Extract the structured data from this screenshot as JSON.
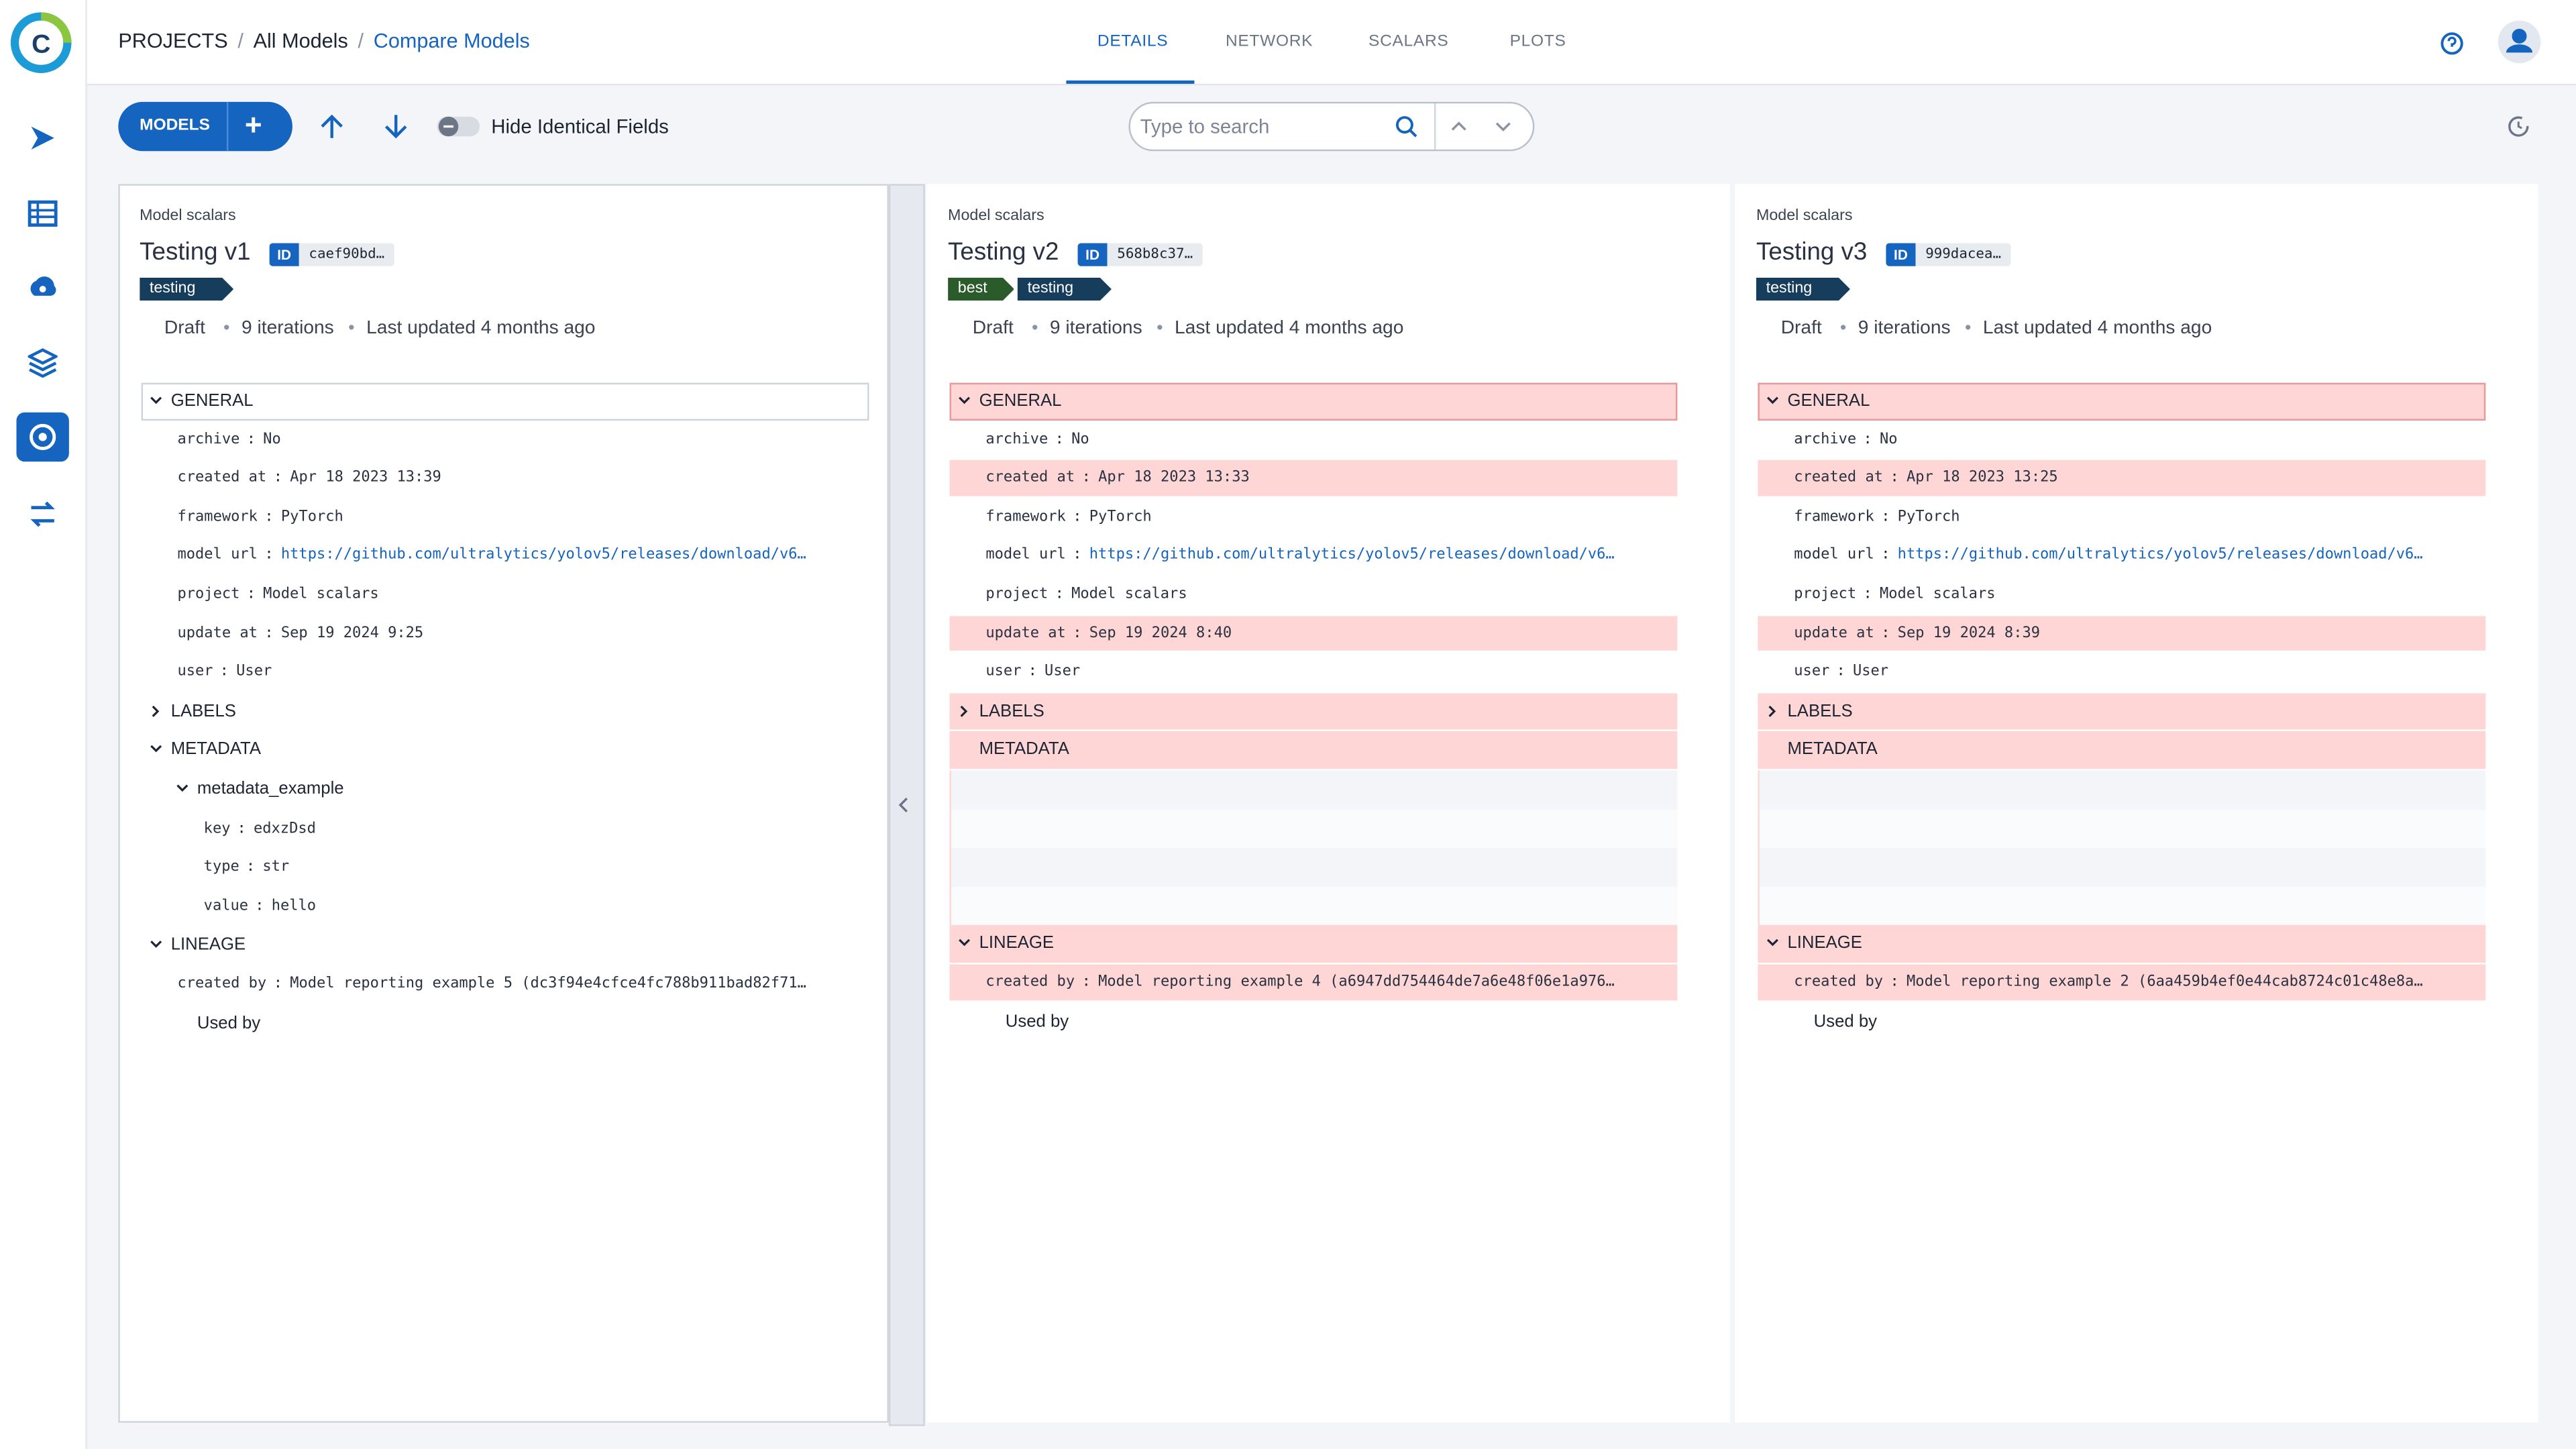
{
  "header": {
    "breadcrumb": [
      "PROJECTS",
      "All Models",
      "Compare Models"
    ],
    "tabs": [
      "DETAILS",
      "NETWORK",
      "SCALARS",
      "PLOTS"
    ],
    "active_tab": 0
  },
  "toolbar": {
    "models_button": "MODELS",
    "hide_identical": "Hide Identical Fields",
    "search_placeholder": "Type to search"
  },
  "kv_separator": ":",
  "panels": [
    {
      "project": "Model scalars",
      "name": "Testing v1",
      "id_badge": "ID",
      "id": "caef90bd…",
      "tags": [
        {
          "name": "testing",
          "color": "#163e5c"
        }
      ],
      "status": "Draft",
      "iterations": "9 iterations",
      "updated": "Last updated 4 months ago",
      "sections": [
        {
          "title": "GENERAL",
          "toggle": "open",
          "differs": false,
          "fields": [
            {
              "key": "archive",
              "value": "No",
              "differs": false
            },
            {
              "key": "created at",
              "value": "Apr 18 2023 13:39",
              "differs": false
            },
            {
              "key": "framework",
              "value": "PyTorch",
              "differs": false
            },
            {
              "key": "model url",
              "value": "https://github.com/ultralytics/yolov5/releases/download/v6…",
              "differs": false,
              "link": true
            },
            {
              "key": "project",
              "value": "Model scalars",
              "differs": false
            },
            {
              "key": "update at",
              "value": "Sep 19 2024 9:25",
              "differs": false
            },
            {
              "key": "user",
              "value": "User",
              "differs": false
            }
          ]
        },
        {
          "title": "LABELS",
          "toggle": "closed",
          "differs": false
        },
        {
          "title": "METADATA",
          "toggle": "open",
          "differs": false,
          "groups": [
            {
              "title": "metadata_example",
              "fields": [
                {
                  "key": "key",
                  "value": "edxzDsd",
                  "differs": false
                },
                {
                  "key": "type",
                  "value": "str",
                  "differs": false
                },
                {
                  "key": "value",
                  "value": "hello",
                  "differs": false
                }
              ]
            }
          ]
        },
        {
          "title": "LINEAGE",
          "toggle": "open",
          "differs": false,
          "fields": [
            {
              "key": "created by",
              "value": "Model reporting example 5 (dc3f94e4cfce4fc788b911bad82f71…",
              "differs": false
            }
          ],
          "footer": "Used by"
        }
      ]
    },
    {
      "project": "Model scalars",
      "name": "Testing v2",
      "id_badge": "ID",
      "id": "568b8c37…",
      "tags": [
        {
          "name": "best",
          "color": "#2b5a2b"
        },
        {
          "name": "testing",
          "color": "#163e5c"
        }
      ],
      "status": "Draft",
      "iterations": "9 iterations",
      "updated": "Last updated 4 months ago",
      "sections": [
        {
          "title": "GENERAL",
          "toggle": "open",
          "differs": true,
          "fields": [
            {
              "key": "archive",
              "value": "No",
              "differs": false
            },
            {
              "key": "created at",
              "value": "Apr 18 2023 13:33",
              "differs": true
            },
            {
              "key": "framework",
              "value": "PyTorch",
              "differs": false
            },
            {
              "key": "model url",
              "value": "https://github.com/ultralytics/yolov5/releases/download/v6…",
              "differs": false,
              "link": true
            },
            {
              "key": "project",
              "value": "Model scalars",
              "differs": false
            },
            {
              "key": "update at",
              "value": "Sep 19 2024 8:40",
              "differs": true
            },
            {
              "key": "user",
              "value": "User",
              "differs": false
            }
          ]
        },
        {
          "title": "LABELS",
          "toggle": "closed",
          "differs": true
        },
        {
          "title": "METADATA",
          "toggle": null,
          "differs": true
        },
        {
          "title": "LINEAGE",
          "toggle": "open",
          "differs": true,
          "fields": [
            {
              "key": "created by",
              "value": "Model reporting example 4 (a6947dd754464de7a6e48f06e1a976…",
              "differs": true
            }
          ],
          "footer": "Used by"
        }
      ]
    },
    {
      "project": "Model scalars",
      "name": "Testing v3",
      "id_badge": "ID",
      "id": "999dacea…",
      "tags": [
        {
          "name": "testing",
          "color": "#163e5c"
        }
      ],
      "status": "Draft",
      "iterations": "9 iterations",
      "updated": "Last updated 4 months ago",
      "sections": [
        {
          "title": "GENERAL",
          "toggle": "open",
          "differs": true,
          "fields": [
            {
              "key": "archive",
              "value": "No",
              "differs": false
            },
            {
              "key": "created at",
              "value": "Apr 18 2023 13:25",
              "differs": true
            },
            {
              "key": "framework",
              "value": "PyTorch",
              "differs": false
            },
            {
              "key": "model url",
              "value": "https://github.com/ultralytics/yolov5/releases/download/v6…",
              "differs": false,
              "link": true
            },
            {
              "key": "project",
              "value": "Model scalars",
              "differs": false
            },
            {
              "key": "update at",
              "value": "Sep 19 2024 8:39",
              "differs": true
            },
            {
              "key": "user",
              "value": "User",
              "differs": false
            }
          ]
        },
        {
          "title": "LABELS",
          "toggle": "closed",
          "differs": true
        },
        {
          "title": "METADATA",
          "toggle": null,
          "differs": true
        },
        {
          "title": "LINEAGE",
          "toggle": "open",
          "differs": true,
          "fields": [
            {
              "key": "created by",
              "value": "Model reporting example 2 (6aa459b4ef0e44cab8724c01c48e8a…",
              "differs": true
            }
          ],
          "footer": "Used by"
        }
      ]
    }
  ]
}
